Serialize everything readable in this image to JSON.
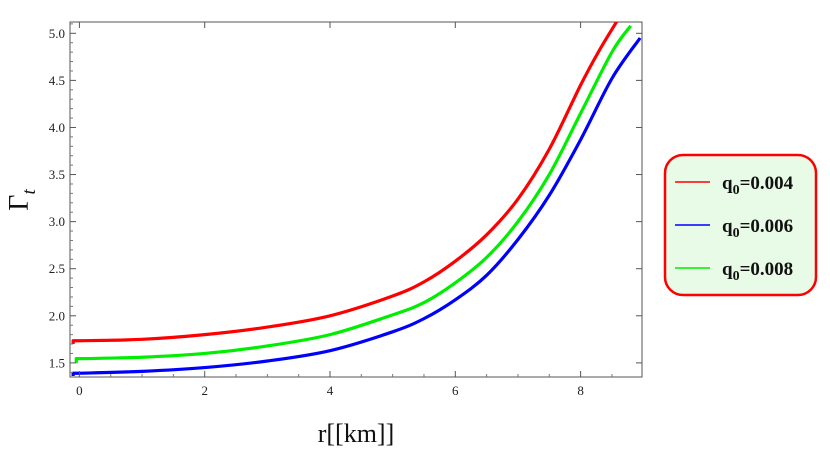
{
  "chart_data": {
    "type": "line",
    "xlabel": "r[[km]]",
    "ylabel_main": "Γ",
    "ylabel_sub": "t",
    "xlim": [
      -0.15,
      8.98
    ],
    "ylim": [
      1.35,
      5.12
    ],
    "xticks": [
      0,
      2,
      4,
      6,
      8
    ],
    "xtick_labels": [
      "0",
      "2",
      "4",
      "6",
      "8"
    ],
    "yticks": [
      1.5,
      2.0,
      2.5,
      3.0,
      3.5,
      4.0,
      4.5,
      5.0
    ],
    "ytick_labels": [
      "1.5",
      "2.0",
      "2.5",
      "3.0",
      "3.5",
      "4.0",
      "4.5",
      "5.0"
    ],
    "grid": false,
    "legend_position": "right",
    "series": [
      {
        "name_main": "q",
        "name_sub": "0",
        "name_value": "=0.004",
        "color": "#ff0000",
        "x": [
          -0.1,
          0,
          1,
          2,
          3,
          4,
          5,
          5.5,
          6,
          6.5,
          7,
          7.5,
          8,
          8.3,
          8.6
        ],
        "y": [
          1.7,
          1.735,
          1.75,
          1.8,
          1.88,
          2.0,
          2.21,
          2.36,
          2.58,
          2.86,
          3.24,
          3.77,
          4.45,
          4.82,
          5.15
        ]
      },
      {
        "name_main": "q",
        "name_sub": "0",
        "name_value": "=0.006",
        "color": "#0000ff",
        "x": [
          -0.1,
          0,
          1,
          2,
          3,
          4,
          5,
          5.5,
          6,
          6.5,
          7,
          7.5,
          8,
          8.5,
          8.95
        ],
        "y": [
          1.36,
          1.39,
          1.41,
          1.45,
          1.52,
          1.63,
          1.83,
          1.97,
          2.17,
          2.43,
          2.81,
          3.28,
          3.87,
          4.52,
          4.95
        ]
      },
      {
        "name_main": "q",
        "name_sub": "0",
        "name_value": "=0.008",
        "color": "#00ee00",
        "x": [
          -0.05,
          0.05,
          1,
          2,
          3,
          4,
          5,
          5.5,
          6,
          6.5,
          7,
          7.5,
          8,
          8.5,
          8.8
        ],
        "y": [
          1.5,
          1.545,
          1.56,
          1.6,
          1.68,
          1.8,
          2.01,
          2.14,
          2.35,
          2.62,
          3.0,
          3.5,
          4.15,
          4.8,
          5.08
        ]
      }
    ]
  }
}
